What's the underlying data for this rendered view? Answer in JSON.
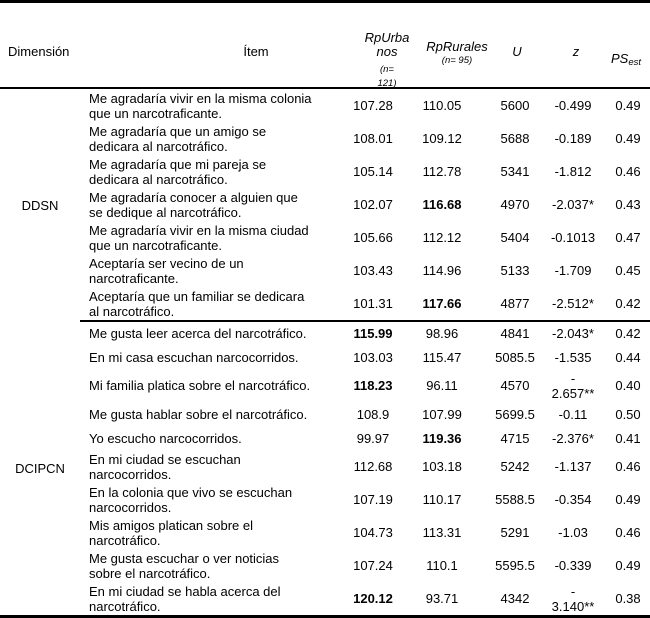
{
  "table": {
    "columns": {
      "dimension": "Dimensión",
      "item": "Ítem",
      "urban": {
        "label": "RpUrba\nnos",
        "n": "(n=\n121)"
      },
      "rural": {
        "label": "RpRurales",
        "n": "(n= 95)"
      },
      "u": "U",
      "z": "z",
      "ps": {
        "label": "PS",
        "sub": "est"
      }
    },
    "sections": [
      {
        "dimension": "DDSN",
        "rows": [
          {
            "item": "Me agradaría vivir en la misma colonia\nque un narcotraficante.",
            "urban": "107.28",
            "rural": "110.05",
            "u": "5600",
            "z": "-0.499",
            "ps": "0.49"
          },
          {
            "item": "Me agradaría que un amigo se\ndedicara al narcotráfico.",
            "urban": "108.01",
            "rural": "109.12",
            "u": "5688",
            "z": "-0.189",
            "ps": "0.49"
          },
          {
            "item": "Me agradaría que mi pareja se\ndedicara al narcotráfico.",
            "urban": "105.14",
            "rural": "112.78",
            "u": "5341",
            "z": "-1.812",
            "ps": "0.46"
          },
          {
            "item": "Me agradaría conocer a alguien que\nse dedique al narcotráfico.",
            "urban": "102.07",
            "rural": "116.68",
            "rural_bold": true,
            "u": "4970",
            "z": "-2.037*",
            "ps": "0.43"
          },
          {
            "item": "Me agradaría vivir en la misma ciudad\nque un narcotraficante.",
            "urban": "105.66",
            "rural": "112.12",
            "u": "5404",
            "z": "-0.1013",
            "ps": "0.47"
          },
          {
            "item": "Aceptaría ser vecino de un\nnarcotraficante.",
            "urban": "103.43",
            "rural": "114.96",
            "u": "5133",
            "z": "-1.709",
            "ps": "0.45"
          },
          {
            "item": "Aceptaría que un familiar se dedicara\nal narcotráfico.",
            "urban": "101.31",
            "rural": "117.66",
            "rural_bold": true,
            "u": "4877",
            "z": "-2.512*",
            "ps": "0.42"
          }
        ]
      },
      {
        "dimension": "DCIPCN",
        "rows": [
          {
            "item": "Me gusta leer acerca del narcotráfico.",
            "urban": "115.99",
            "urban_bold": true,
            "rural": "98.96",
            "u": "4841",
            "z": "-2.043*",
            "ps": "0.42"
          },
          {
            "item": "En mi casa escuchan narcocorridos.",
            "urban": "103.03",
            "rural": "115.47",
            "u": "5085.5",
            "z": "-1.535",
            "ps": "0.44"
          },
          {
            "item": "Mi familia platica sobre el narcotráfico.",
            "urban": "118.23",
            "urban_bold": true,
            "rural": "96.11",
            "u": "4570",
            "z": "-\n2.657**",
            "ps": "0.40"
          },
          {
            "item": "Me gusta hablar sobre el narcotráfico.",
            "urban": "108.9",
            "rural": "107.99",
            "u": "5699.5",
            "z": "-0.11",
            "ps": "0.50"
          },
          {
            "item": "Yo escucho narcocorridos.",
            "urban": "99.97",
            "rural": "119.36",
            "rural_bold": true,
            "u": "4715",
            "z": "-2.376*",
            "ps": "0.41"
          },
          {
            "item": "En mi ciudad se escuchan\nnarcocorridos.",
            "urban": "112.68",
            "rural": "103.18",
            "u": "5242",
            "z": "-1.137",
            "ps": "0.46"
          },
          {
            "item": "En la colonia que vivo se escuchan\nnarcocorridos.",
            "urban": "107.19",
            "rural": "110.17",
            "u": "5588.5",
            "z": "-0.354",
            "ps": "0.49"
          },
          {
            "item": "Mis amigos platican sobre el\nnarcotráfico.",
            "urban": "104.73",
            "rural": "113.31",
            "u": "5291",
            "z": "-1.03",
            "ps": "0.46"
          },
          {
            "item": "Me gusta escuchar o ver noticias\nsobre el narcotráfico.",
            "urban": "107.24",
            "rural": "110.1",
            "u": "5595.5",
            "z": "-0.339",
            "ps": "0.49"
          },
          {
            "item": "En mi ciudad se habla acerca del\nnarcotráfico.",
            "urban": "120.12",
            "urban_bold": true,
            "rural": "93.71",
            "u": "4342",
            "z": "-\n3.140**",
            "ps": "0.38"
          }
        ]
      }
    ]
  }
}
